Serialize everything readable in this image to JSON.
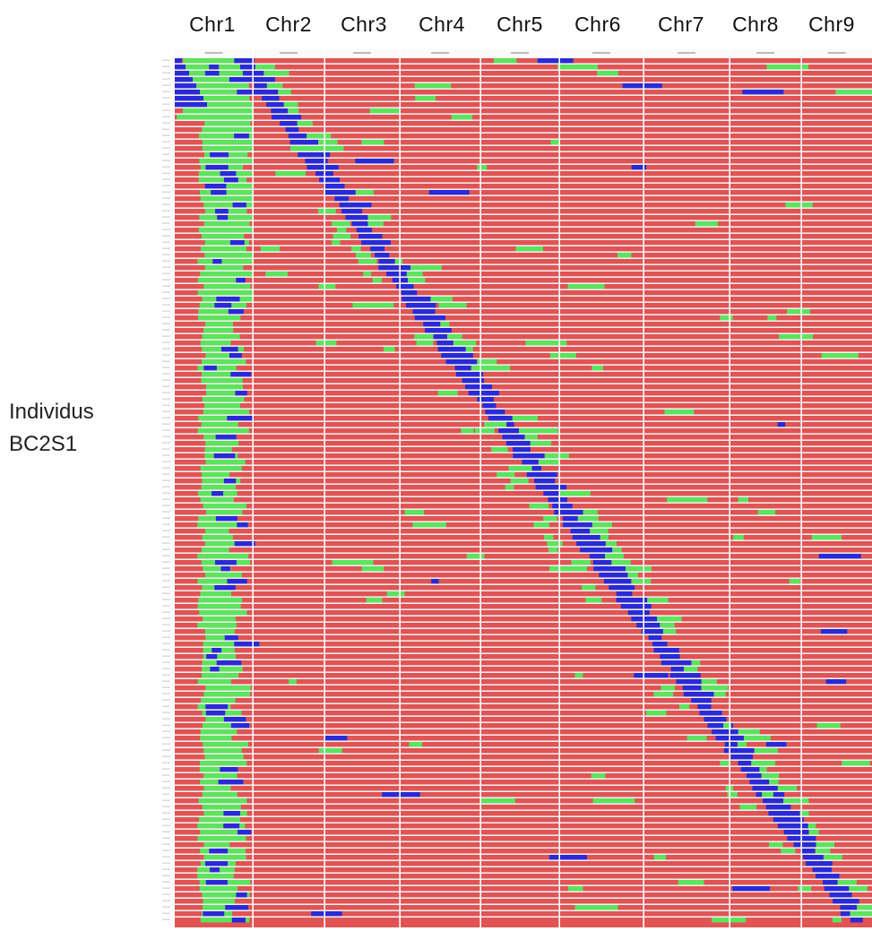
{
  "figure": {
    "chromosomes": [
      "Chr1",
      "Chr2",
      "Chr3",
      "Chr4",
      "Chr5",
      "Chr6",
      "Chr7",
      "Chr8",
      "Chr9"
    ],
    "y_label_line1": "Individus",
    "y_label_line2": "BC2S1",
    "row_count": 138,
    "colors": {
      "recurrent_homozygous": "#e05454",
      "heterozygous": "#5de35d",
      "donor_homozygous": "#2a2ad6",
      "separator": "#f2f2f2",
      "ruler": "#d8d8d8"
    }
  }
}
